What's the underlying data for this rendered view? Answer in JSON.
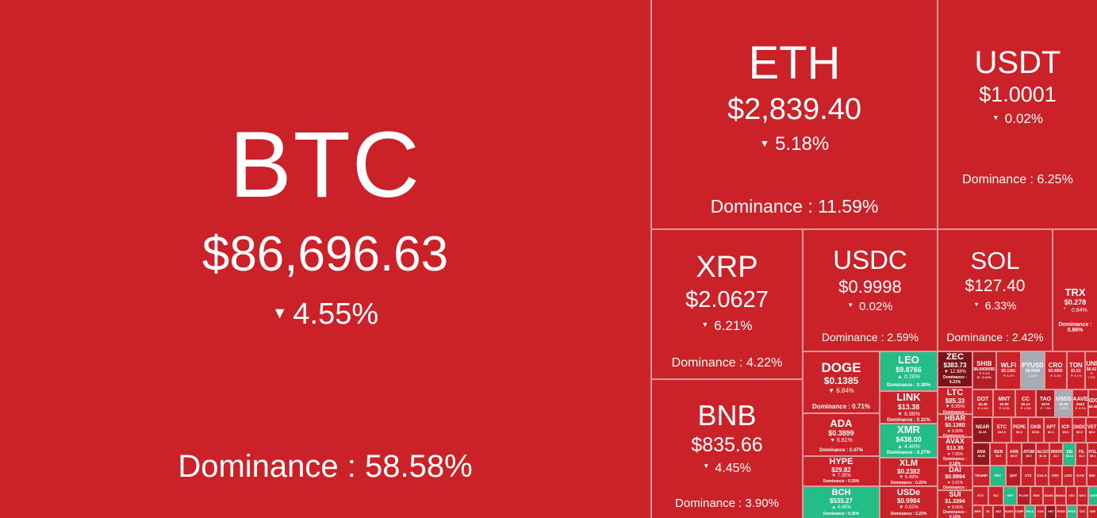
{
  "chart_data": {
    "type": "heatmap",
    "title": "Crypto market dominance treemap",
    "legend_position": "none",
    "colors": {
      "down": "#cb2128",
      "up": "#25bd87",
      "stable": "#a7acb4",
      "deep_down": "#7c1217",
      "gap": "#e09a9e"
    },
    "tiles": [
      {
        "symbol": "BTC",
        "price": "$86,696.63",
        "change_pct": -4.55,
        "dominance_pct": 58.58
      },
      {
        "symbol": "ETH",
        "price": "$2,839.40",
        "change_pct": -5.18,
        "dominance_pct": 11.59
      },
      {
        "symbol": "USDT",
        "price": "$1.0001",
        "change_pct": -0.02,
        "dominance_pct": 6.25
      },
      {
        "symbol": "XRP",
        "price": "$2.0627",
        "change_pct": -6.21,
        "dominance_pct": 4.22
      },
      {
        "symbol": "BNB",
        "price": "$835.66",
        "change_pct": -4.45,
        "dominance_pct": 3.9
      },
      {
        "symbol": "USDC",
        "price": "$0.9998",
        "change_pct": -0.02,
        "dominance_pct": 2.59
      },
      {
        "symbol": "SOL",
        "price": "$127.40",
        "change_pct": -6.33,
        "dominance_pct": 2.42
      },
      {
        "symbol": "TRX",
        "price": "$0.278",
        "change_pct": -0.84,
        "dominance_pct": 0.86
      },
      {
        "symbol": "DOGE",
        "price": "$0.1385",
        "change_pct": -6.84,
        "dominance_pct": 0.71
      },
      {
        "symbol": "ADA",
        "price": "$0.3899",
        "change_pct": -6.61,
        "dominance_pct": 0.47
      },
      {
        "symbol": "HYPE",
        "price": "$29.82",
        "change_pct": -7.35,
        "dominance_pct": 0.33
      },
      {
        "symbol": "BCH",
        "price": "$535.27",
        "change_pct": 4.46,
        "dominance_pct": 0.36
      },
      {
        "symbol": "LEO",
        "price": "$9.8766",
        "change_pct": 0.26,
        "dominance_pct": 0.3
      },
      {
        "symbol": "LINK",
        "price": "$13.38",
        "change_pct": -6.96,
        "dominance_pct": 0.31
      },
      {
        "symbol": "XMR",
        "price": "$438.00",
        "change_pct": 4.4,
        "dominance_pct": 0.27
      },
      {
        "symbol": "XLM",
        "price": "$0.2382",
        "change_pct": -6.49,
        "dominance_pct": 0.25
      },
      {
        "symbol": "USDe",
        "price": "$0.9984",
        "change_pct": -0.02,
        "dominance_pct": 0.23
      },
      {
        "symbol": "ZEC",
        "price": "$383.73",
        "change_pct": -12.98,
        "dominance_pct": 0.21
      },
      {
        "symbol": "LTC",
        "price": "$85.33",
        "change_pct": -6.95,
        "dominance_pct": 0.2
      },
      {
        "symbol": "HBAR",
        "price": "$0.1380",
        "change_pct": -6.6,
        "dominance_pct": 0.19
      },
      {
        "symbol": "AVAX",
        "price": "$13.35",
        "change_pct": -7.65,
        "dominance_pct": 0.18
      },
      {
        "symbol": "DAI",
        "price": "$0.9994",
        "change_pct": -0.01,
        "dominance_pct": 0.17
      },
      {
        "symbol": "SUI",
        "price": "$1.3394",
        "change_pct": -8.06,
        "dominance_pct": 0.16
      }
    ]
  },
  "tiles": {
    "btc": {
      "sym": "BTC",
      "price": "$86,696.63",
      "arrow": "▼",
      "change": "4.55%",
      "dom": "Dominance : 58.58%"
    },
    "eth": {
      "sym": "ETH",
      "price": "$2,839.40",
      "arrow": "▼",
      "change": "5.18%",
      "dom": "Dominance : 11.59%"
    },
    "usdt": {
      "sym": "USDT",
      "price": "$1.0001",
      "arrow": "▼",
      "change": "0.02%",
      "dom": "Dominance : 6.25%"
    },
    "xrp": {
      "sym": "XRP",
      "price": "$2.0627",
      "arrow": "▼",
      "change": "6.21%",
      "dom": "Dominance : 4.22%"
    },
    "usdc": {
      "sym": "USDC",
      "price": "$0.9998",
      "arrow": "▼",
      "change": "0.02%",
      "dom": "Dominance : 2.59%"
    },
    "sol": {
      "sym": "SOL",
      "price": "$127.40",
      "arrow": "▼",
      "change": "6.33%",
      "dom": "Dominance : 2.42%"
    },
    "trx": {
      "sym": "TRX",
      "price": "$0.278",
      "arrow": "▼",
      "change": "0.84%",
      "dom": "Dominance : 0.86%"
    },
    "bnb": {
      "sym": "BNB",
      "price": "$835.66",
      "arrow": "▼",
      "change": "4.45%",
      "dom": "Dominance : 3.90%"
    }
  },
  "col_doge": [
    {
      "sym": "DOGE",
      "price": "$0.1385",
      "chg": "▼ 6.84%",
      "dom": "Dominance : 0.71%",
      "s": "s1",
      "h": 76
    },
    {
      "sym": "ADA",
      "price": "$0.3899",
      "chg": "▼ 6.61%",
      "dom": "Dominance : 0.47%",
      "s": "s2",
      "h": 52
    },
    {
      "sym": "HYPE",
      "price": "$29.82",
      "chg": "▼ 7.35%",
      "dom": "Dominance : 0.33%",
      "s": "s3",
      "h": 36
    },
    {
      "sym": "BCH",
      "price": "$535.27",
      "chg": "▲ 4.46%",
      "dom": "Dominance : 0.36%",
      "s": "s3",
      "h": 39,
      "c": "g"
    }
  ],
  "col_leo": [
    {
      "sym": "LEO",
      "price": "$9.8766",
      "chg": "▲ 0.26%",
      "dom": "Dominance : 0.30%",
      "s": "s2",
      "h": 48,
      "c": "g"
    },
    {
      "sym": "LINK",
      "price": "$13.38",
      "chg": "▼ 6.96%",
      "dom": "Dominance : 0.31%",
      "s": "s2",
      "h": 39
    },
    {
      "sym": "XMR",
      "price": "$438.00",
      "chg": "▲ 4.40%",
      "dom": "Dominance : 0.27%",
      "s": "s2",
      "h": 41,
      "c": "g"
    },
    {
      "sym": "XLM",
      "price": "$0.2382",
      "chg": "▼ 6.49%",
      "dom": "Dominance : 0.25%",
      "s": "s3",
      "h": 34
    },
    {
      "sym": "USDe",
      "price": "$0.9984",
      "chg": "▼ 0.02%",
      "dom": "Dominance : 0.23%",
      "s": "s3",
      "h": 39
    }
  ],
  "col_zec": [
    {
      "sym": "ZEC",
      "price": "$383.73",
      "chg": "▼ 12.98%",
      "dom": "Dominance : 0.21%",
      "s": "s3",
      "h": 43,
      "c": "xr"
    },
    {
      "sym": "LTC",
      "price": "$85.33",
      "chg": "▼ 6.95%",
      "dom": "Dominance : 0.20%",
      "s": "s3",
      "h": 32
    },
    {
      "sym": "HBAR",
      "price": "$0.1380",
      "chg": "▼ 6.60%",
      "dom": "Dominance : 0.19%",
      "s": "s4",
      "h": 27
    },
    {
      "sym": "AVAX",
      "price": "$13.35",
      "chg": "▼ 7.65%",
      "dom": "Dominance : 0.18%",
      "s": "s4",
      "h": 34
    },
    {
      "sym": "DAI",
      "price": "$0.9994",
      "chg": "▼ 0.01%",
      "dom": "Dominance : 0.17%",
      "s": "s4",
      "h": 29
    },
    {
      "sym": "SUI",
      "price": "$1.3394",
      "chg": "▼ 8.06%",
      "dom": "Dominance : 0.16%",
      "s": "s4",
      "h": 34
    }
  ],
  "mosaic": {
    "rows": [
      {
        "cls": "rA",
        "tiles": [
          {
            "sym": "SHIB",
            "price": "$0.0000095",
            "chg": "▼ 6.9%",
            "dom": "D : 0.12%",
            "w": 28,
            "c": "r2"
          },
          {
            "sym": "WLFI",
            "price": "$0.1301",
            "chg": "▼ 8.2%",
            "w": 30
          },
          {
            "sym": "PYUSD",
            "price": "$0.9999",
            "chg": "0.01%",
            "w": 28,
            "c": "gy"
          },
          {
            "sym": "CRO",
            "price": "$0.0905",
            "chg": "▼ 5.4%",
            "w": 26
          },
          {
            "sym": "TON",
            "price": "$1.52",
            "chg": "▼ 6.1%",
            "w": 22
          },
          {
            "sym": "UNI",
            "price": "$6.42",
            "chg": "▼ 7.0%",
            "w": 14
          }
        ]
      },
      {
        "cls": "rB",
        "tiles": [
          {
            "sym": "DOT",
            "price": "$2.48",
            "chg": "▼ 6.6%",
            "w": 24
          },
          {
            "sym": "MNT",
            "price": "$0.89",
            "chg": "▼ 5.9%",
            "w": 26
          },
          {
            "sym": "CC",
            "price": "$0.14",
            "chg": "▼ 4.8%",
            "w": 24
          },
          {
            "sym": "TAO",
            "price": "$278",
            "chg": "▼ 7.9%",
            "w": 22,
            "c": "r2"
          },
          {
            "sym": "USDS",
            "price": "$1.00",
            "chg": "0.01%",
            "w": 20,
            "c": "gy"
          },
          {
            "sym": "AAVE",
            "price": "$152",
            "chg": "▼ 6.2%",
            "w": 18
          },
          {
            "sym": "XDC",
            "price": "$0.05",
            "w": 10
          }
        ]
      },
      {
        "cls": "rC",
        "tiles": [
          {
            "sym": "NEAR",
            "price": "$1.93",
            "w": 22,
            "c": "dr"
          },
          {
            "sym": "ETC",
            "price": "$12.9",
            "w": 20
          },
          {
            "sym": "PEPE",
            "price": "$0.0",
            "w": 18
          },
          {
            "sym": "OKB",
            "price": "$103",
            "w": 17
          },
          {
            "sym": "APT",
            "price": "$2.1",
            "w": 16
          },
          {
            "sym": "ICP",
            "price": "$3.9",
            "w": 15
          },
          {
            "sym": "ONDO",
            "price": "$0.5",
            "w": 14
          },
          {
            "sym": "VET",
            "price": "$0.0",
            "w": 12
          }
        ]
      },
      {
        "cls": "rD",
        "tiles": [
          {
            "sym": "ENA",
            "price": "$0.23",
            "w": 19,
            "c": "dr"
          },
          {
            "sym": "BGB",
            "price": "$3.9",
            "w": 17
          },
          {
            "sym": "ARB",
            "price": "$0.27",
            "w": 16
          },
          {
            "sym": "ATOM",
            "price": "$2.5",
            "w": 15,
            "c": "r2"
          },
          {
            "sym": "ALGO",
            "price": "$0.13",
            "w": 14
          },
          {
            "sym": "RNDR",
            "price": "$1.7",
            "w": 14
          },
          {
            "sym": "SEI",
            "price": "$0.14",
            "w": 13,
            "c": "g"
          },
          {
            "sym": "FIL",
            "price": "$1.4",
            "w": 12
          },
          {
            "sym": "POL",
            "price": "$0.1",
            "w": 10
          }
        ]
      },
      {
        "cls": "rE",
        "tiles": [
          {
            "sym": "TRUMP",
            "w": 16
          },
          {
            "sym": "FET",
            "w": 15,
            "c": "g"
          },
          {
            "sym": "QNT",
            "w": 14,
            "c": "r2"
          },
          {
            "sym": "XTZ",
            "w": 13
          },
          {
            "sym": "GALA",
            "w": 12
          },
          {
            "sym": "CRV",
            "w": 12
          },
          {
            "sym": "LDO",
            "w": 11
          },
          {
            "sym": "KAS",
            "w": 11
          },
          {
            "sym": "IMX",
            "w": 10
          }
        ]
      },
      {
        "cls": "rF",
        "tiles": [
          {
            "sym": "STX",
            "w": 14
          },
          {
            "sym": "INJ",
            "w": 13
          },
          {
            "sym": "GRT",
            "w": 12,
            "c": "g"
          },
          {
            "sym": "FLOW",
            "w": 11,
            "c": "r2"
          },
          {
            "sym": "ENS",
            "w": 11
          },
          {
            "sym": "SAND",
            "w": 10
          },
          {
            "sym": "MANA",
            "w": 10
          },
          {
            "sym": "XEC",
            "w": 9
          },
          {
            "sym": "NEO",
            "w": 9
          },
          {
            "sym": "CAKE",
            "w": 8,
            "c": "g"
          }
        ]
      },
      {
        "cls": "rG",
        "tiles": [
          {
            "sym": "MKR",
            "w": 12
          },
          {
            "sym": "ZIL",
            "w": 12
          },
          {
            "sym": "BAT",
            "w": 12,
            "c": "r2"
          },
          {
            "sym": "DASH",
            "w": 12
          },
          {
            "sym": "COMP",
            "w": 12
          },
          {
            "sym": "EGLD",
            "w": 12,
            "c": "g"
          },
          {
            "sym": "KSM",
            "w": 12
          },
          {
            "sym": "HNT",
            "w": 12,
            "c": "dr"
          },
          {
            "sym": "RUNE",
            "w": 12
          },
          {
            "sym": "ROSE",
            "w": 12,
            "c": "g"
          },
          {
            "sym": "CHZ",
            "w": 12
          },
          {
            "sym": "ONE",
            "w": 12
          }
        ]
      }
    ]
  }
}
